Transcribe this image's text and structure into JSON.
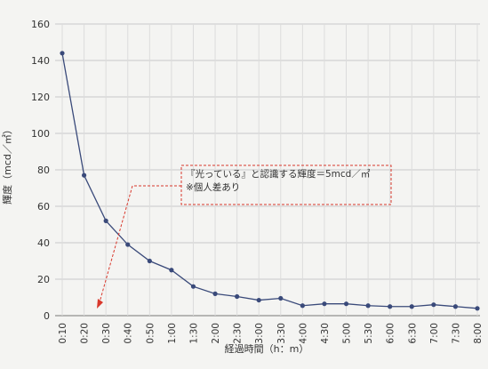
{
  "chart_data": {
    "type": "line",
    "title": "",
    "xlabel": "経過時間（h：m）",
    "ylabel": "輝度（mcd／㎡）",
    "ylim": [
      0,
      160
    ],
    "yticks": [
      0,
      20,
      40,
      60,
      80,
      100,
      120,
      140,
      160
    ],
    "grid": true,
    "categories": [
      "0:10",
      "0:20",
      "0:30",
      "0:40",
      "0:50",
      "1:00",
      "1:30",
      "2:00",
      "2:30",
      "3:00",
      "3:30",
      "4:00",
      "4:30",
      "5:00",
      "5:30",
      "6:00",
      "6:30",
      "7:00",
      "7:30",
      "8:00"
    ],
    "series": [
      {
        "values": [
          144,
          77,
          52,
          39,
          30,
          25,
          16,
          12,
          10.5,
          8.5,
          9.5,
          5.5,
          6.5,
          6.5,
          5.5,
          5,
          5,
          6,
          5,
          4
        ],
        "color": "#3a4a7a"
      }
    ],
    "annotation": {
      "lines": [
        "『光っている』と認識する輝度＝5mcd／㎡",
        "※個人差あり"
      ],
      "color": "#d9382c"
    }
  }
}
